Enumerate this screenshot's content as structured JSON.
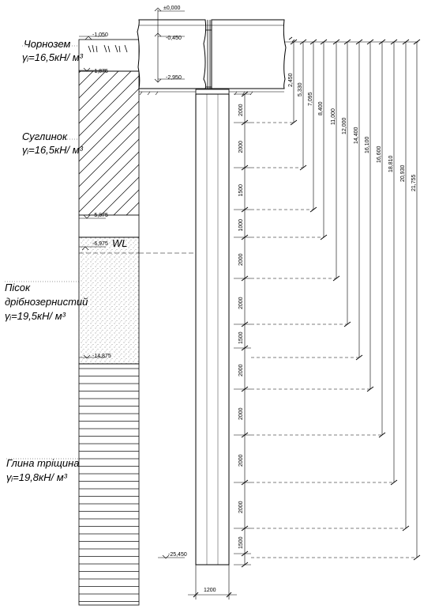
{
  "layers": [
    {
      "name": "Чорнозем",
      "weight": "γᵢ=16,5кН/ м³"
    },
    {
      "name": "Суглинок",
      "weight": "γᵢ=16,5кН/ м³"
    },
    {
      "name": "Пісок",
      "name2": "дрібнозернистий",
      "weight": "γᵢ=19,5кН/ м³"
    },
    {
      "name": "Глина тріщина",
      "weight": "γᵢ=19,8кН/ м³"
    }
  ],
  "water_level": "WL",
  "elevations": {
    "top": "±0,000",
    "grillage_top": "-0,450",
    "grillage_bottom": "-2,950",
    "surface": "-1,050",
    "e1": "-1,875",
    "e2": "-5,875",
    "e3": "-6,975",
    "e4": "-14,875",
    "pile_tip": "-25,450"
  },
  "segments": [
    "2000",
    "2000",
    "1500",
    "1000",
    "2000",
    "2000",
    "1500",
    "2000",
    "2000",
    "2000",
    "2000",
    "1500"
  ],
  "depths": [
    "2,450",
    "5,330",
    "7,095",
    "8,400",
    "11,000",
    "12,000",
    "14,400",
    "16,100",
    "16,600",
    "18,810",
    "20,930",
    "21,755"
  ],
  "pile_diameter": "1200"
}
